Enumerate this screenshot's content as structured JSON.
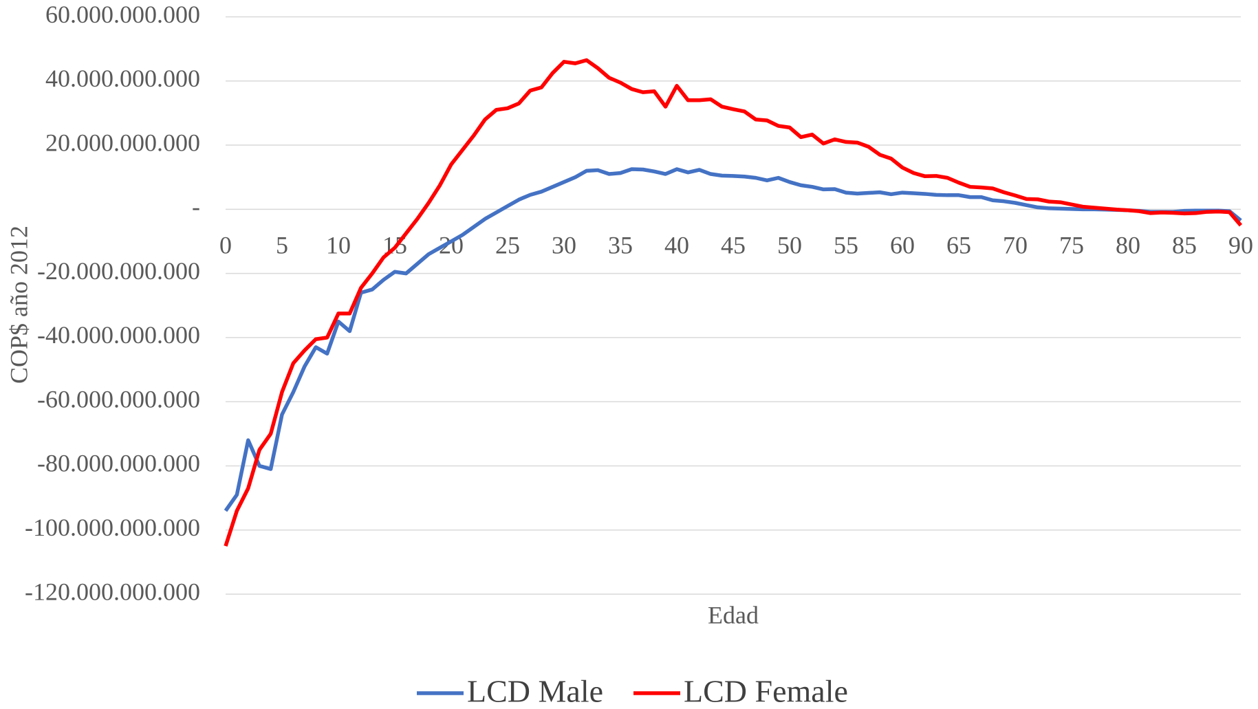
{
  "chart_data": {
    "type": "line",
    "xlabel": "Edad",
    "ylabel": "COP$  año 2012",
    "x": [
      0,
      1,
      2,
      3,
      4,
      5,
      6,
      7,
      8,
      9,
      10,
      11,
      12,
      13,
      14,
      15,
      16,
      17,
      18,
      19,
      20,
      21,
      22,
      23,
      24,
      25,
      26,
      27,
      28,
      29,
      30,
      31,
      32,
      33,
      34,
      35,
      36,
      37,
      38,
      39,
      40,
      41,
      42,
      43,
      44,
      45,
      46,
      47,
      48,
      49,
      50,
      51,
      52,
      53,
      54,
      55,
      56,
      57,
      58,
      59,
      60,
      61,
      62,
      63,
      64,
      65,
      66,
      67,
      68,
      69,
      70,
      71,
      72,
      73,
      74,
      75,
      76,
      77,
      78,
      79,
      80,
      81,
      82,
      83,
      84,
      85,
      86,
      87,
      88,
      89,
      90
    ],
    "series": [
      {
        "name": "LCD Male",
        "color": "#4472c4",
        "values": [
          -94000000000,
          -89000000000,
          -72000000000,
          -80000000000,
          -81000000000,
          -64000000000,
          -57000000000,
          -49000000000,
          -43000000000,
          -45000000000,
          -35000000000,
          -38000000000,
          -26000000000,
          -25000000000,
          -22000000000,
          -19500000000,
          -20000000000,
          -17000000000,
          -14000000000,
          -12000000000,
          -10000000000,
          -8000000000,
          -5500000000,
          -3000000000,
          -1000000000,
          1000000000,
          3000000000,
          4500000000,
          5500000000,
          7000000000,
          8500000000,
          10000000000,
          12000000000,
          12200000000,
          11000000000,
          11300000000,
          12500000000,
          12400000000,
          11800000000,
          11000000000,
          12500000000,
          11500000000,
          12300000000,
          11000000000,
          10500000000,
          10400000000,
          10200000000,
          9800000000,
          9000000000,
          9800000000,
          8500000000,
          7500000000,
          7000000000,
          6200000000,
          6300000000,
          5200000000,
          4900000000,
          5100000000,
          5300000000,
          4700000000,
          5200000000,
          5000000000,
          4800000000,
          4500000000,
          4400000000,
          4400000000,
          3800000000,
          3800000000,
          2800000000,
          2500000000,
          2000000000,
          1300000000,
          600000000,
          300000000,
          200000000,
          100000000,
          0,
          0,
          -100000000,
          -200000000,
          -300000000,
          -500000000,
          -800000000,
          -800000000,
          -800000000,
          -500000000,
          -400000000,
          -400000000,
          -400000000,
          -600000000,
          -3500000000
        ]
      },
      {
        "name": "LCD Female",
        "color": "#ff0000",
        "values": [
          -105000000000,
          -94000000000,
          -87000000000,
          -75000000000,
          -70000000000,
          -57000000000,
          -48000000000,
          -44000000000,
          -40500000000,
          -40000000000,
          -32500000000,
          -32500000000,
          -24500000000,
          -20000000000,
          -15000000000,
          -12000000000,
          -7500000000,
          -3000000000,
          2000000000,
          7500000000,
          14000000000,
          18500000000,
          23000000000,
          28000000000,
          31000000000,
          31500000000,
          33000000000,
          37000000000,
          38000000000,
          42500000000,
          46000000000,
          45500000000,
          46500000000,
          44000000000,
          41000000000,
          39500000000,
          37500000000,
          36500000000,
          36800000000,
          32000000000,
          38500000000,
          34000000000,
          34000000000,
          34300000000,
          32000000000,
          31200000000,
          30500000000,
          28000000000,
          27700000000,
          26000000000,
          25500000000,
          22500000000,
          23300000000,
          20500000000,
          21800000000,
          21000000000,
          20800000000,
          19500000000,
          17000000000,
          15800000000,
          13000000000,
          11300000000,
          10300000000,
          10400000000,
          9800000000,
          8300000000,
          7000000000,
          6800000000,
          6500000000,
          5300000000,
          4300000000,
          3200000000,
          3100000000,
          2400000000,
          2200000000,
          1500000000,
          800000000,
          500000000,
          200000000,
          -100000000,
          -300000000,
          -600000000,
          -1200000000,
          -1000000000,
          -1100000000,
          -1300000000,
          -1200000000,
          -800000000,
          -700000000,
          -900000000,
          -5000000000
        ]
      }
    ],
    "xlim": [
      0,
      90
    ],
    "xticks": [
      0,
      5,
      10,
      15,
      20,
      25,
      30,
      35,
      40,
      45,
      50,
      55,
      60,
      65,
      70,
      75,
      80,
      85,
      90
    ],
    "ylim": [
      -120000000000,
      60000000000
    ],
    "yticks": [
      {
        "value": -120000000000,
        "label": "-120.000.000.000"
      },
      {
        "value": -100000000000,
        "label": "-100.000.000.000"
      },
      {
        "value": -80000000000,
        "label": "-80.000.000.000"
      },
      {
        "value": -60000000000,
        "label": "-60.000.000.000"
      },
      {
        "value": -40000000000,
        "label": "-40.000.000.000"
      },
      {
        "value": -20000000000,
        "label": "-20.000.000.000"
      },
      {
        "value": 0,
        "label": "-"
      },
      {
        "value": 20000000000,
        "label": "20.000.000.000"
      },
      {
        "value": 40000000000,
        "label": "40.000.000.000"
      },
      {
        "value": 60000000000,
        "label": "60.000.000.000"
      }
    ],
    "grid": true,
    "legend": "bottom"
  }
}
